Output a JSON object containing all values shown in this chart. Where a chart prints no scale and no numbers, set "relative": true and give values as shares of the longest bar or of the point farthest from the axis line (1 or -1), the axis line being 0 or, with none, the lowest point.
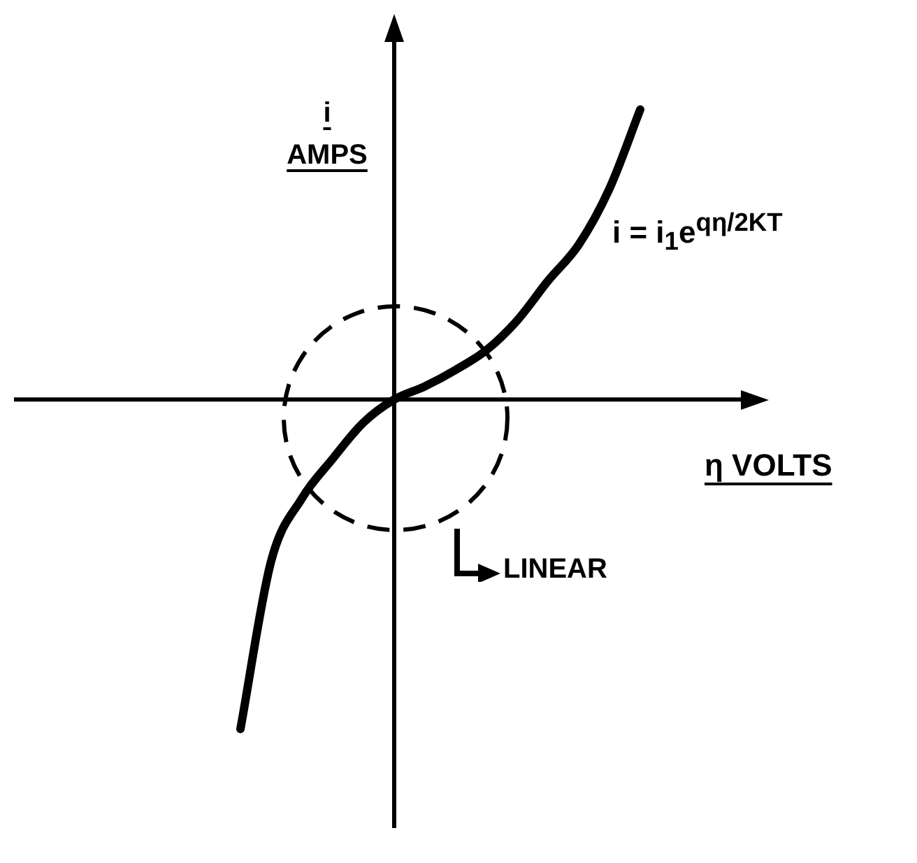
{
  "chart_data": {
    "type": "line",
    "relative": true,
    "xlabel": "η VOLTS",
    "ylabel": "i AMPS",
    "grid": false,
    "legend": false,
    "marker": "none",
    "line_style": "solid",
    "categories": [
      null,
      null,
      null,
      null,
      null,
      null,
      null,
      null,
      null,
      null,
      null,
      null,
      null,
      null
    ],
    "series": [
      {
        "color": "#000000",
        "values": [
          -1,
          -0.49,
          -0.3,
          -0.18,
          -0.07,
          0,
          0.04,
          0.09,
          0.15,
          0.24,
          0.36,
          0.47,
          0.64,
          0.88
        ]
      }
    ],
    "annotations": [
      "i = i$_{1}$e$^{qη/2KT}$",
      "LINEAR"
    ]
  }
}
